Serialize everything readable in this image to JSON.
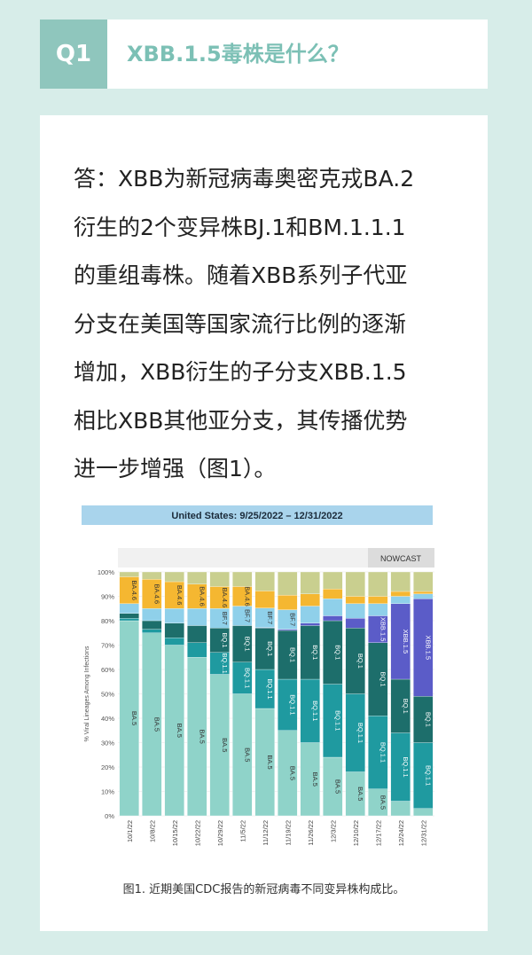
{
  "header": {
    "number": "Q1",
    "title": "XBB.1.5毒株是什么？"
  },
  "body": {
    "lines": [
      "答：XBB为新冠病毒奥密克戎BA.2",
      "衍生的2个变异株BJ.1和BM.1.1.1",
      "的重组毒株。随着XBB系列子代亚",
      "分支在美国等国家流行比例的逐渐",
      "增加，XBB衍生的子分支XBB.1.5",
      "相比XBB其他亚分支，其传播优势",
      "进一步增强（图1）。"
    ]
  },
  "chart_data": {
    "type": "stacked_bar",
    "title": "United States: 9/25/2022 – 12/31/2022",
    "annotation": "NOWCAST",
    "y_label": "% Viral Lineages Among Infections",
    "categories": [
      "10/1/22",
      "10/8/22",
      "10/15/22",
      "10/22/22",
      "10/29/22",
      "11/5/22",
      "11/12/22",
      "11/19/22",
      "11/26/22",
      "12/3/22",
      "12/10/22",
      "12/17/22",
      "12/24/22",
      "12/31/22"
    ],
    "series": [
      {
        "name": "BA.5",
        "color": "#8fd3c9",
        "values": [
          80,
          75,
          70,
          65,
          58,
          50,
          44,
          35,
          30,
          24,
          18,
          11,
          6,
          3
        ]
      },
      {
        "name": "BQ.1.1",
        "color": "#1f9aa0",
        "values": [
          1,
          1.5,
          3,
          6,
          9,
          13,
          16,
          21,
          26,
          30,
          32,
          30,
          28,
          27
        ]
      },
      {
        "name": "BQ.1",
        "color": "#1d6e6b",
        "values": [
          2,
          3.5,
          6,
          7,
          10,
          15,
          17,
          20,
          22,
          26,
          27,
          30,
          22,
          19
        ]
      },
      {
        "name": "XBB.1.5",
        "color": "#5b5cc8",
        "values": [
          0,
          0,
          0,
          0,
          0,
          0,
          0.2,
          0.5,
          1,
          2,
          4,
          11,
          31,
          40
        ]
      },
      {
        "name": "BF.7",
        "color": "#8fd0ea",
        "values": [
          4,
          5,
          6,
          7,
          8,
          8,
          8,
          8,
          7,
          7,
          6,
          5,
          3,
          2
        ]
      },
      {
        "name": "BA.4.6",
        "color": "#f5b731",
        "values": [
          11,
          12,
          11,
          10,
          9,
          8,
          7,
          6,
          5,
          4,
          3,
          3,
          2,
          1
        ]
      },
      {
        "color": "#c9cf8f",
        "values": [
          2,
          3,
          4,
          5,
          6,
          6,
          7.8,
          9.5,
          9,
          7,
          10,
          10,
          8,
          8
        ]
      }
    ],
    "ylim": [
      0,
      100
    ],
    "yticks": [
      {
        "value": 0,
        "label": "0%"
      },
      {
        "value": 10,
        "label": "10%"
      },
      {
        "value": 20,
        "label": "20%"
      },
      {
        "value": 30,
        "label": "30%"
      },
      {
        "value": 40,
        "label": "40%"
      },
      {
        "value": 50,
        "label": "50%"
      },
      {
        "value": 60,
        "label": "60%"
      },
      {
        "value": 70,
        "label": "70%"
      },
      {
        "value": 80,
        "label": "80%"
      },
      {
        "value": 90,
        "label": "90%"
      },
      {
        "value": 100,
        "label": "100%"
      }
    ],
    "grid": true
  },
  "caption": "图1. 近期美国CDC报告的新冠病毒不同变异株构成比。"
}
